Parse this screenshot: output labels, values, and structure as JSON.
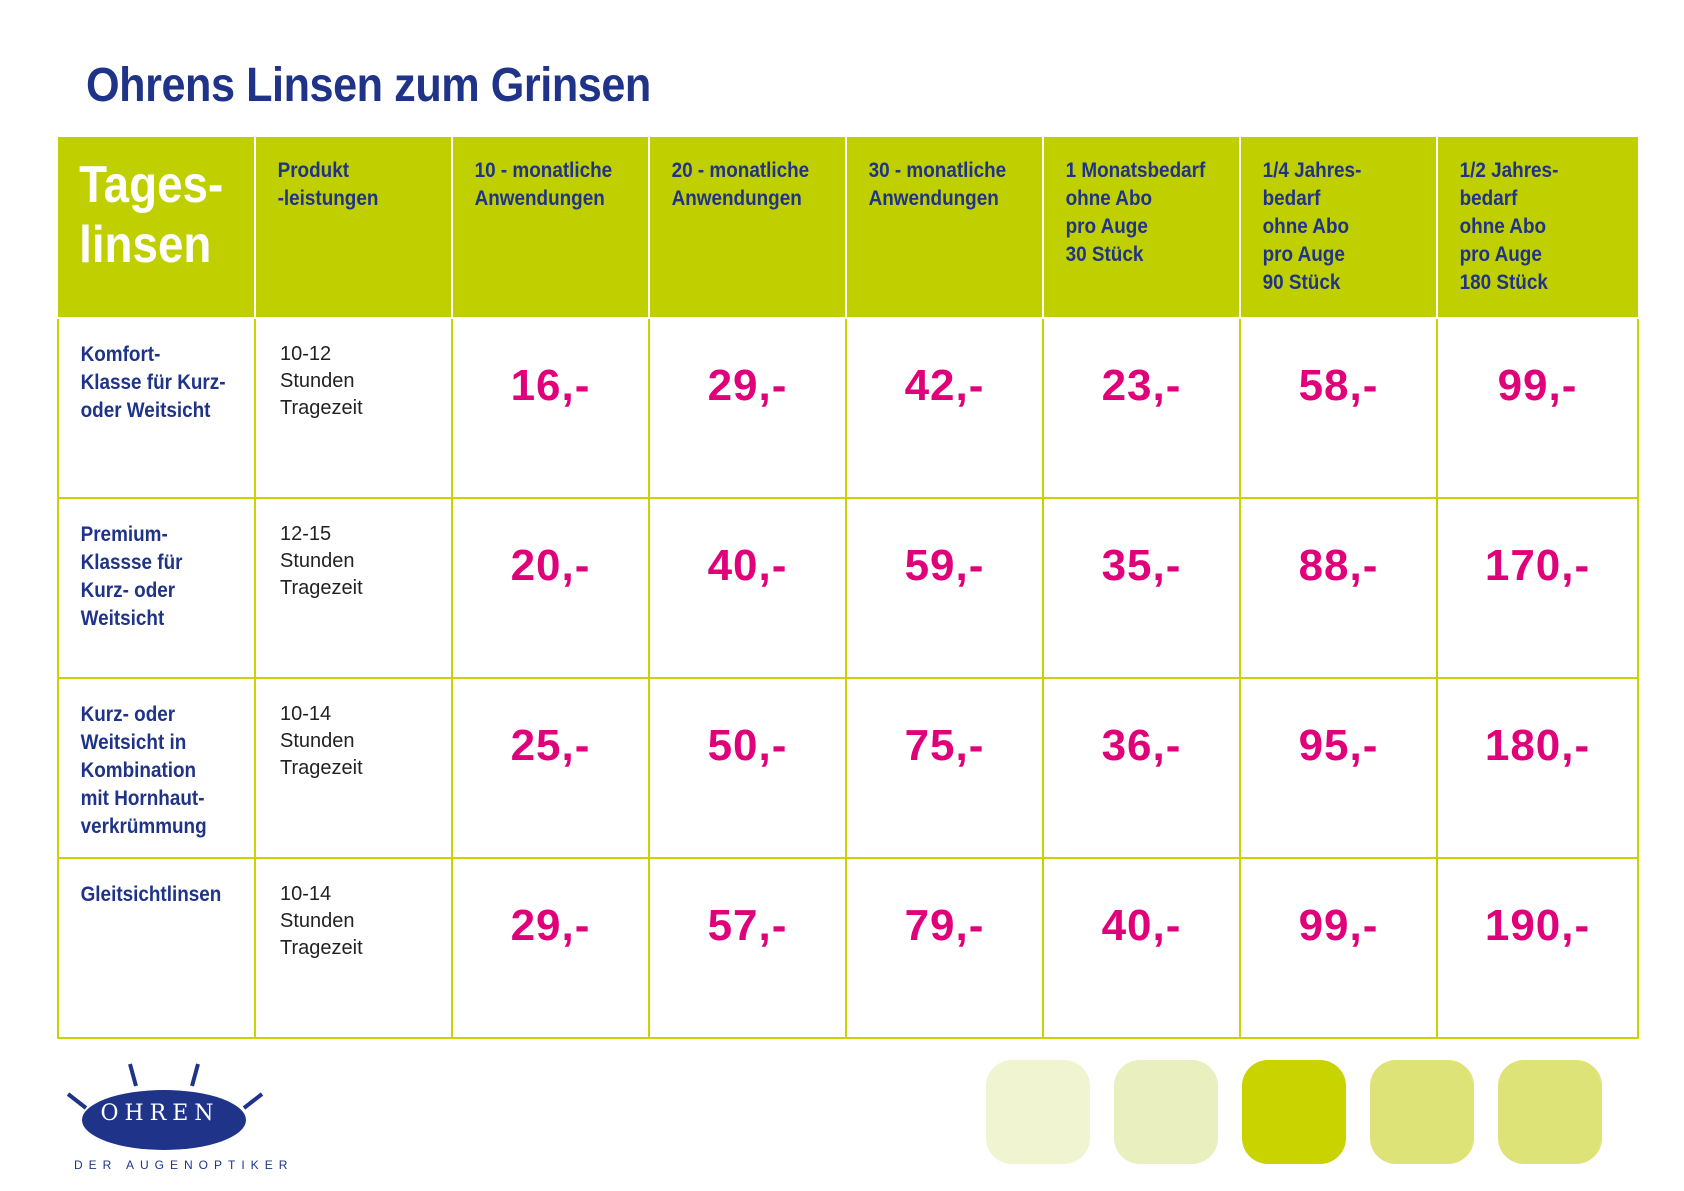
{
  "title": "Ohrens Linsen zum Grinsen",
  "table": {
    "corner_label": "Tages-\nlinsen",
    "columns": [
      "Produkt\n-leistungen",
      "10 - monatliche\nAnwendungen",
      "20 - monatliche\nAnwendungen",
      "30 - monatliche\nAnwendungen",
      "1 Monatsbedarf\nohne Abo\npro Auge\n30 Stück",
      "1/4 Jahres-\nbedarf\nohne Abo\npro Auge\n90 Stück",
      "1/2 Jahres-\nbedarf\nohne Abo\npro Auge\n180 Stück"
    ],
    "rows": [
      {
        "label": "Komfort-\nKlasse für Kurz-\noder Weitsicht",
        "performance": "10-12\nStunden\nTragezeit",
        "prices": [
          "16,-",
          "29,-",
          "42,-",
          "23,-",
          "58,-",
          "99,-"
        ]
      },
      {
        "label": "Premium-\nKlassse für\nKurz- oder\nWeitsicht",
        "performance": "12-15\nStunden\nTragezeit",
        "prices": [
          "20,-",
          "40,-",
          "59,-",
          "35,-",
          "88,-",
          "170,-"
        ]
      },
      {
        "label": "Kurz- oder\nWeitsicht in\nKombination\nmit Hornhaut-\nverkrümmung",
        "performance": "10-14\nStunden\nTragezeit",
        "prices": [
          "25,-",
          "50,-",
          "75,-",
          "36,-",
          "95,-",
          "180,-"
        ]
      },
      {
        "label": "Gleitsichtlinsen",
        "performance": "10-14\nStunden\nTragezeit",
        "prices": [
          "29,-",
          "57,-",
          "79,-",
          "40,-",
          "99,-",
          "190,-"
        ]
      }
    ]
  },
  "logo": {
    "name": "OHREN",
    "subtitle": "DER AUGENOPTIKER"
  },
  "colors": {
    "header_green": "#bfcf00",
    "navy": "#1f3488",
    "price_magenta": "#e0007a",
    "swatches": [
      "#f1f4d0",
      "#e9efbe",
      "#c8d300",
      "#dde377",
      "#dde377"
    ]
  }
}
